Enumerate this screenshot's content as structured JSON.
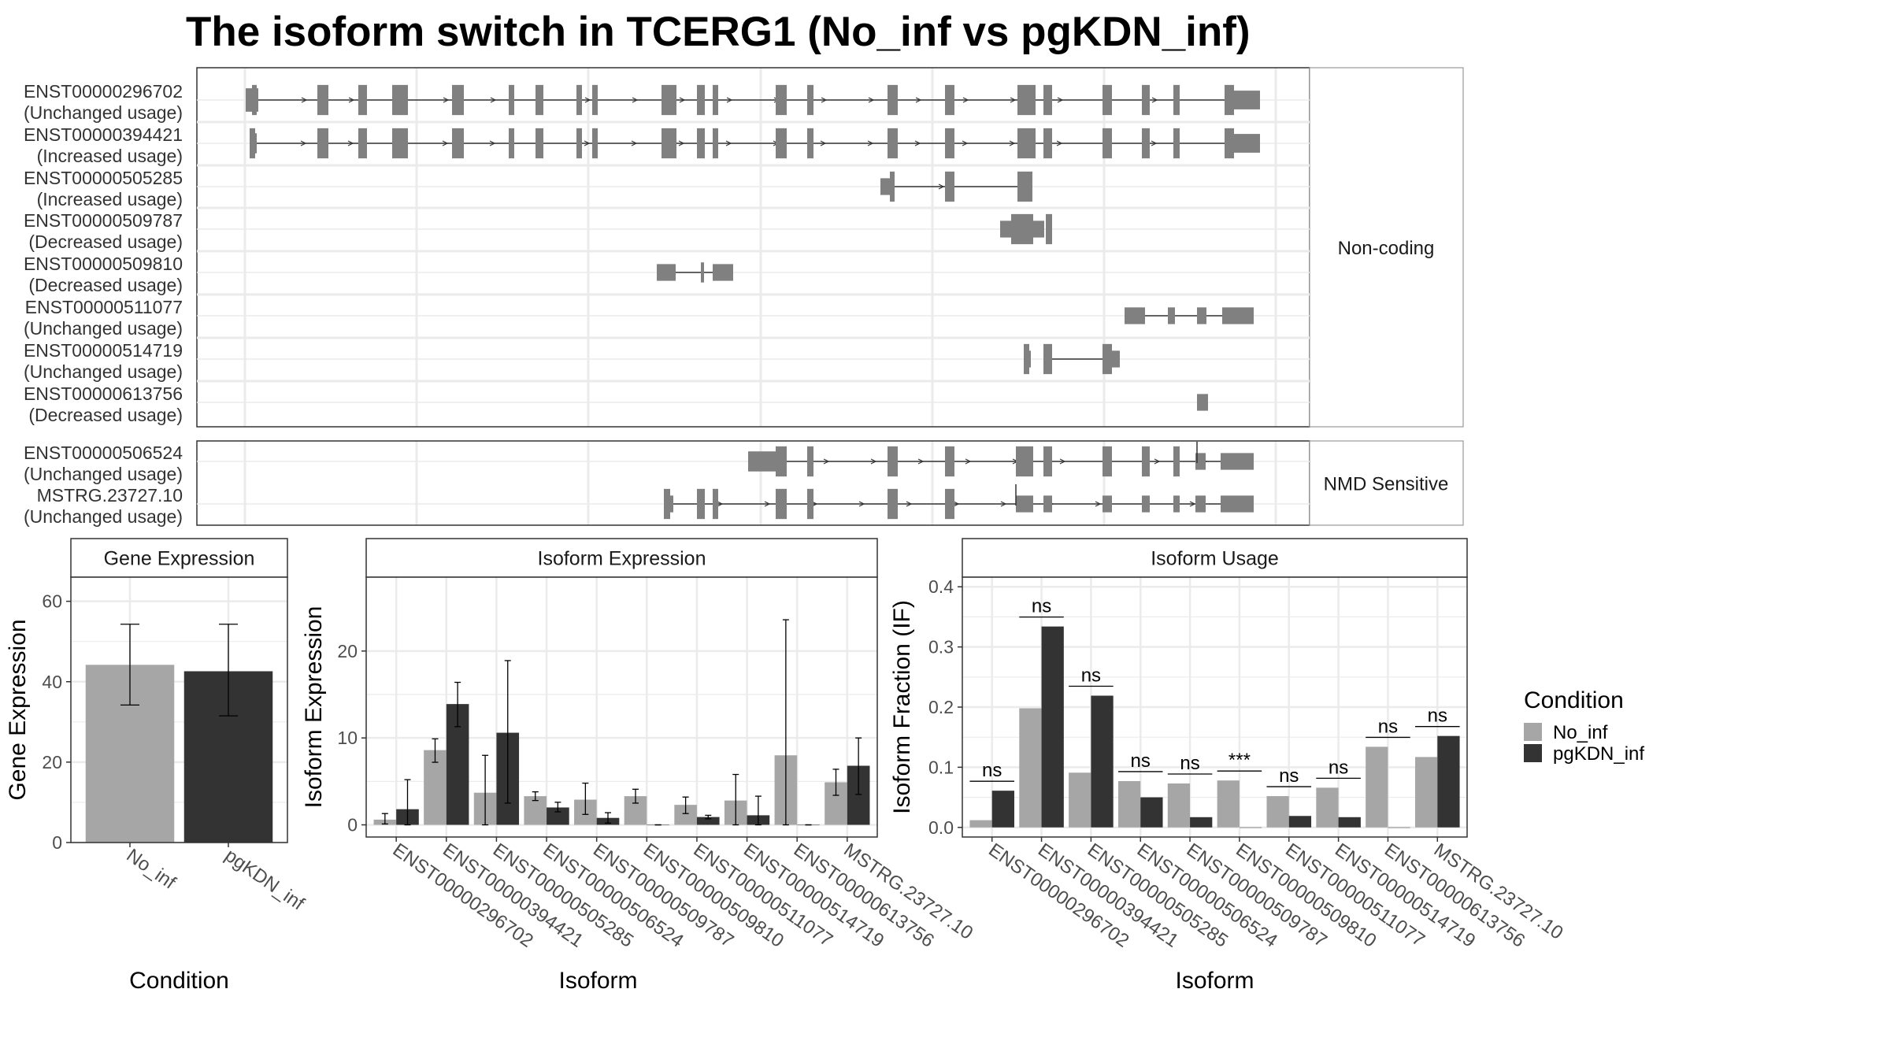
{
  "title": "The isoform switch in TCERG1 (No_inf vs pgKDN_inf)",
  "colors": {
    "no_inf": "#a6a6a6",
    "pgkdn_inf": "#333333",
    "exon": "#808080",
    "strip_bg": "#ffffff",
    "grid": "#ebebeb",
    "panel_border": "#333333"
  },
  "structure": {
    "groups": [
      {
        "label": "Non-coding",
        "isoforms": [
          {
            "id": "ENST00000296702",
            "usage": "(Unchanged usage)"
          },
          {
            "id": "ENST00000394421",
            "usage": "(Increased usage)"
          },
          {
            "id": "ENST00000505285",
            "usage": "(Increased usage)"
          },
          {
            "id": "ENST00000509787",
            "usage": "(Decreased usage)"
          },
          {
            "id": "ENST00000509810",
            "usage": "(Decreased usage)"
          },
          {
            "id": "ENST00000511077",
            "usage": "(Unchanged usage)"
          },
          {
            "id": "ENST00000514719",
            "usage": "(Unchanged usage)"
          },
          {
            "id": "ENST00000613756",
            "usage": "(Decreased usage)"
          }
        ]
      },
      {
        "label": "NMD Sensitive",
        "isoforms": [
          {
            "id": "ENST00000506524",
            "usage": "(Unchanged usage)"
          },
          {
            "id": "MSTRG.23727.10",
            "usage": "(Unchanged usage)"
          }
        ]
      }
    ]
  },
  "chart_data": [
    {
      "type": "bar",
      "strip": "Gene Expression",
      "xlabel": "Condition",
      "ylabel": "Gene Expression",
      "ylim": [
        0,
        66
      ],
      "yticks": [
        0,
        20,
        40,
        60
      ],
      "categories": [
        "No_inf",
        "pgKDN_inf"
      ],
      "values": [
        44.2,
        42.6
      ],
      "error_low": [
        34.2,
        31.5
      ],
      "error_high": [
        54.3,
        54.3
      ]
    },
    {
      "type": "bar",
      "strip": "Isoform Expression",
      "xlabel": "Isoform",
      "ylabel": "Isoform Expression",
      "ylim": [
        -1.4,
        28.5
      ],
      "yticks": [
        0,
        10,
        20
      ],
      "categories": [
        "ENST00000296702",
        "ENST00000394421",
        "ENST00000505285",
        "ENST00000506524",
        "ENST00000509787",
        "ENST00000509810",
        "ENST00000511077",
        "ENST00000514719",
        "ENST00000613756",
        "MSTRG.23727.10"
      ],
      "series": [
        {
          "name": "No_inf",
          "values": [
            0.6,
            8.6,
            3.7,
            3.3,
            2.9,
            3.3,
            2.3,
            2.8,
            8.0,
            4.9
          ],
          "error_low": [
            0.1,
            7.2,
            0.0,
            2.8,
            1.2,
            2.5,
            1.3,
            0.0,
            0.0,
            3.4
          ],
          "error_high": [
            1.3,
            9.9,
            8.0,
            3.8,
            4.8,
            4.1,
            3.2,
            5.8,
            23.6,
            6.4
          ]
        },
        {
          "name": "pgKDN_inf",
          "values": [
            1.8,
            13.9,
            10.6,
            2.0,
            0.8,
            0.0,
            0.9,
            1.1,
            0.0,
            6.8
          ],
          "error_low": [
            0.0,
            11.3,
            2.5,
            1.5,
            0.2,
            0.0,
            0.7,
            0.0,
            0.0,
            3.5
          ],
          "error_high": [
            5.2,
            16.4,
            18.9,
            2.6,
            1.4,
            0.0,
            1.1,
            3.3,
            0.0,
            10.0
          ]
        }
      ]
    },
    {
      "type": "bar",
      "strip": "Isoform Usage",
      "xlabel": "Isoform",
      "ylabel": "Isoform Fraction (IF)",
      "ylim": [
        -0.016,
        0.416
      ],
      "yticks": [
        0.0,
        0.1,
        0.2,
        0.3,
        0.4
      ],
      "ytick_labels": [
        "0.0",
        "0.1",
        "0.2",
        "0.3",
        "0.4"
      ],
      "categories": [
        "ENST00000296702",
        "ENST00000394421",
        "ENST00000505285",
        "ENST00000506524",
        "ENST00000509787",
        "ENST00000509810",
        "ENST00000511077",
        "ENST00000514719",
        "ENST00000613756",
        "MSTRG.23727.10"
      ],
      "series": [
        {
          "name": "No_inf",
          "values": [
            0.012,
            0.198,
            0.091,
            0.077,
            0.073,
            0.078,
            0.052,
            0.066,
            0.134,
            0.117
          ]
        },
        {
          "name": "pgKDN_inf",
          "values": [
            0.061,
            0.334,
            0.219,
            0.05,
            0.017,
            0.0,
            0.019,
            0.017,
            0.0,
            0.152
          ]
        }
      ],
      "significance": [
        "ns",
        "ns",
        "ns",
        "ns",
        "ns",
        "***",
        "ns",
        "ns",
        "ns",
        "ns"
      ]
    }
  ],
  "legend": {
    "title": "Condition",
    "items": [
      {
        "label": "No_inf",
        "color": "#a6a6a6"
      },
      {
        "label": "pgKDN_inf",
        "color": "#333333"
      }
    ]
  }
}
